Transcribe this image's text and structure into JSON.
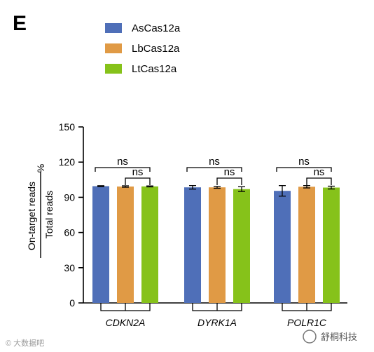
{
  "panel_label": "E",
  "colors": {
    "AsCas12a": "#4f6fb8",
    "LbCas12a": "#e09a45",
    "LtCas12a": "#86c21a"
  },
  "watermarks": {
    "left": "© 大数据吧",
    "right": "舒桐科技"
  },
  "chart_data": {
    "type": "bar",
    "categories": [
      "CDKN2A",
      "DYRK1A",
      "POLR1C"
    ],
    "series": [
      {
        "name": "AsCas12a",
        "values": [
          99.5,
          98.5,
          95.5
        ],
        "errors": [
          0.4,
          1.5,
          4.5
        ]
      },
      {
        "name": "LbCas12a",
        "values": [
          99.2,
          98.5,
          99.0
        ],
        "errors": [
          0.6,
          0.8,
          1.0
        ]
      },
      {
        "name": "LtCas12a",
        "values": [
          99.3,
          97.0,
          98.3
        ],
        "errors": [
          0.4,
          2.0,
          1.2
        ]
      }
    ],
    "ylabel": {
      "numerator": "On-target reads",
      "denominator": "Total reads",
      "unit": "%"
    },
    "ylim": [
      0,
      150
    ],
    "yticks": [
      0,
      30,
      60,
      90,
      120,
      150
    ],
    "legend_position": "top-left",
    "significance": [
      {
        "group": 0,
        "from": 0,
        "to": 2,
        "label": "ns"
      },
      {
        "group": 0,
        "from": 1,
        "to": 2,
        "label": "ns"
      },
      {
        "group": 1,
        "from": 0,
        "to": 2,
        "label": "ns"
      },
      {
        "group": 1,
        "from": 1,
        "to": 2,
        "label": "ns"
      },
      {
        "group": 2,
        "from": 0,
        "to": 2,
        "label": "ns"
      },
      {
        "group": 2,
        "from": 1,
        "to": 2,
        "label": "ns"
      }
    ]
  }
}
